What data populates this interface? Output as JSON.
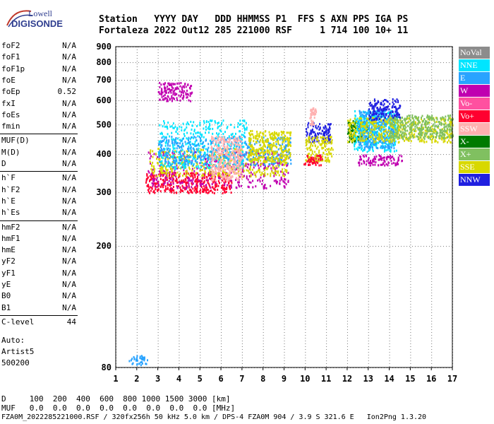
{
  "logo": {
    "line1": "Lowell",
    "line2": "DIGISONDE"
  },
  "header": {
    "line1": "Station   YYYY DAY   DDD HHMMSS P1  FFS S AXN PPS IGA PS",
    "line2": "Fortaleza 2022 Out12 285 221000 RSF     1 714 100 10+ 11"
  },
  "params": [
    {
      "k": "foF2",
      "v": "N/A"
    },
    {
      "k": "foF1",
      "v": "N/A"
    },
    {
      "k": "foF1p",
      "v": "N/A"
    },
    {
      "k": "foE",
      "v": "N/A"
    },
    {
      "k": "foEp",
      "v": "0.52"
    },
    {
      "k": "fxI",
      "v": "N/A"
    },
    {
      "k": "foEs",
      "v": "N/A"
    },
    {
      "k": "fmin",
      "v": "N/A"
    },
    {
      "k": "MUF(D)",
      "v": "N/A"
    },
    {
      "k": "M(D)",
      "v": "N/A"
    },
    {
      "k": "D",
      "v": "N/A"
    },
    {
      "k": "h`F",
      "v": "N/A"
    },
    {
      "k": "h`F2",
      "v": "N/A"
    },
    {
      "k": "h`E",
      "v": "N/A"
    },
    {
      "k": "h`Es",
      "v": "N/A"
    },
    {
      "k": "hmF2",
      "v": "N/A"
    },
    {
      "k": "hmF1",
      "v": "N/A"
    },
    {
      "k": "hmE",
      "v": "N/A"
    },
    {
      "k": "yF2",
      "v": "N/A"
    },
    {
      "k": "yF1",
      "v": "N/A"
    },
    {
      "k": "yE",
      "v": "N/A"
    },
    {
      "k": "B0",
      "v": "N/A"
    },
    {
      "k": "B1",
      "v": "N/A"
    },
    {
      "k": "C-level",
      "v": "44"
    }
  ],
  "auto": [
    "Auto:",
    "Artist5",
    "500200"
  ],
  "bottom": {
    "line1": "D     100  200  400  600  800 1000 1500 3000 [km]",
    "line2": "MUF   0.0  0.0  0.0  0.0  0.0  0.0  0.0  0.0 [MHz]",
    "line3": "FZA0M_2022285221000.RSF / 320fx256h 50 kHz 5.0 km / DPS-4 FZA0M 904 / 3.9 S 321.6 E   Ion2Png 1.3.20"
  },
  "legend": [
    {
      "label": "NoVal",
      "color": "#8c8c8c"
    },
    {
      "label": "NNE",
      "color": "#00e5ff"
    },
    {
      "label": "E",
      "color": "#29a3ff"
    },
    {
      "label": "W",
      "color": "#c000b0"
    },
    {
      "label": "Vo-",
      "color": "#ff50a0"
    },
    {
      "label": "Vo+",
      "color": "#ff0030"
    },
    {
      "label": "SSW",
      "color": "#ffb0b0"
    },
    {
      "label": "X-",
      "color": "#007a00"
    },
    {
      "label": "X+",
      "color": "#80c060"
    },
    {
      "label": "SSE",
      "color": "#d8d800"
    },
    {
      "label": "NNW",
      "color": "#2020e0"
    }
  ],
  "chart_data": {
    "type": "scatter",
    "title": "",
    "xlabel": "",
    "ylabel": "",
    "x_ticks": [
      1,
      2,
      3,
      4,
      5,
      6,
      7,
      8,
      9,
      10,
      11,
      12,
      13,
      14,
      15,
      16,
      17
    ],
    "y_ticks": [
      80,
      200,
      300,
      400,
      500,
      600,
      700,
      800,
      900
    ],
    "xlim": [
      1,
      17
    ],
    "ylim": [
      80,
      900
    ],
    "y_scale": "log",
    "grid": true,
    "clusters": [
      {
        "series": "E",
        "x": [
          1.6,
          2.5
        ],
        "y": [
          82,
          88
        ]
      },
      {
        "series": "Vo+",
        "x": [
          2.4,
          6.5
        ],
        "y": [
          300,
          350
        ]
      },
      {
        "series": "W",
        "x": [
          2.5,
          9.2
        ],
        "y": [
          310,
          410
        ]
      },
      {
        "series": "SSE",
        "x": [
          2.6,
          9.2
        ],
        "y": [
          340,
          420
        ]
      },
      {
        "series": "NNE",
        "x": [
          3.0,
          7.2
        ],
        "y": [
          360,
          520
        ]
      },
      {
        "series": "E",
        "x": [
          3.0,
          9.3
        ],
        "y": [
          370,
          460
        ]
      },
      {
        "series": "W",
        "x": [
          3.0,
          4.6
        ],
        "y": [
          600,
          690
        ]
      },
      {
        "series": "SSW",
        "x": [
          5.5,
          7.0
        ],
        "y": [
          330,
          460
        ]
      },
      {
        "series": "SSE",
        "x": [
          7.3,
          9.3
        ],
        "y": [
          380,
          480
        ]
      },
      {
        "series": "NNW",
        "x": [
          10.0,
          11.2
        ],
        "y": [
          440,
          510
        ]
      },
      {
        "series": "SSE",
        "x": [
          10.0,
          11.3
        ],
        "y": [
          380,
          460
        ]
      },
      {
        "series": "SSW",
        "x": [
          10.2,
          10.5
        ],
        "y": [
          500,
          570
        ]
      },
      {
        "series": "Vo+",
        "x": [
          9.9,
          10.8
        ],
        "y": [
          370,
          400
        ]
      },
      {
        "series": "X-",
        "x": [
          12.0,
          13.0
        ],
        "y": [
          440,
          520
        ]
      },
      {
        "series": "NNE",
        "x": [
          12.3,
          14.4
        ],
        "y": [
          410,
          560
        ]
      },
      {
        "series": "E",
        "x": [
          12.5,
          14.2
        ],
        "y": [
          420,
          560
        ]
      },
      {
        "series": "W",
        "x": [
          12.5,
          14.6
        ],
        "y": [
          370,
          400
        ]
      },
      {
        "series": "SSE",
        "x": [
          12.0,
          17.0
        ],
        "y": [
          440,
          530
        ]
      },
      {
        "series": "X+",
        "x": [
          14.0,
          17.0
        ],
        "y": [
          450,
          540
        ]
      },
      {
        "series": "NNW",
        "x": [
          13.0,
          14.5
        ],
        "y": [
          520,
          610
        ]
      }
    ]
  }
}
